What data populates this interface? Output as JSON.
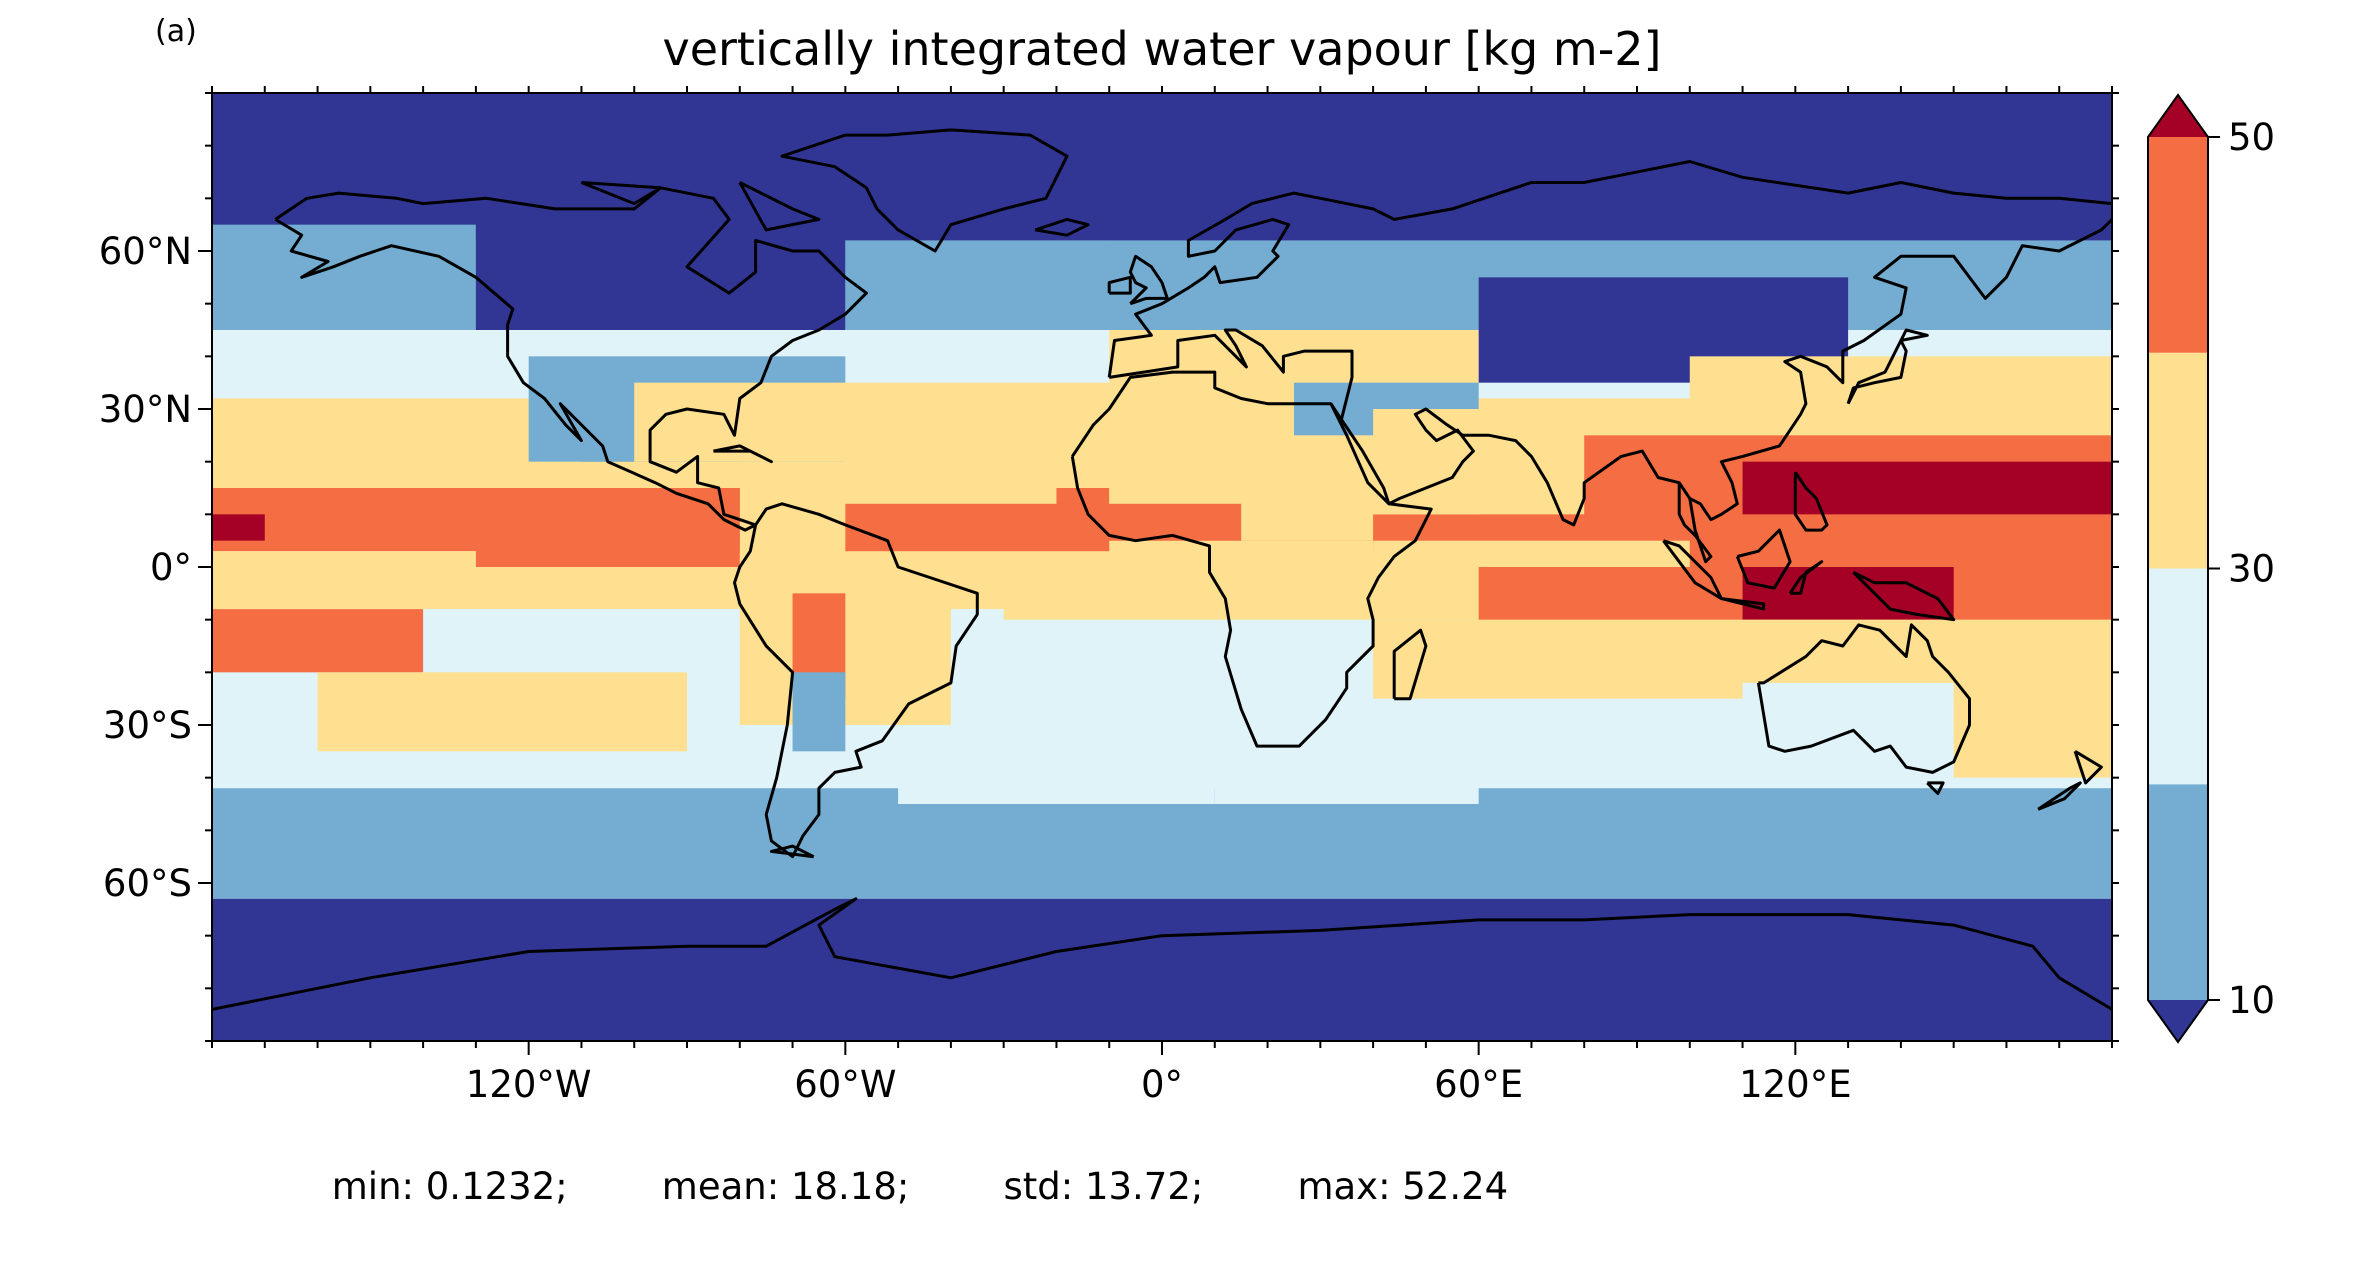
{
  "panel_label": "(a)",
  "title": "vertically integrated water vapour [kg m-2]",
  "stats": {
    "min_label": "min:",
    "min": "0.1232;",
    "mean_label": "mean:",
    "mean": "18.18;",
    "std_label": "std:",
    "std": "13.72;",
    "max_label": "max:",
    "max": "52.24"
  },
  "map": {
    "projection": "equirectangular",
    "lon_range": [
      -180,
      180
    ],
    "lat_range": [
      -90,
      90
    ],
    "lon_ticks": [
      {
        "value": -120,
        "label": "120°W"
      },
      {
        "value": -60,
        "label": "60°W"
      },
      {
        "value": 0,
        "label": "0°"
      },
      {
        "value": 60,
        "label": "60°E"
      },
      {
        "value": 120,
        "label": "120°E"
      }
    ],
    "lat_ticks": [
      {
        "value": 60,
        "label": "60°N"
      },
      {
        "value": 30,
        "label": "30°N"
      },
      {
        "value": 0,
        "label": "0°"
      },
      {
        "value": -30,
        "label": "30°S"
      },
      {
        "value": -60,
        "label": "60°S"
      }
    ]
  },
  "colorbar": {
    "levels": [
      10,
      20,
      30,
      40,
      50
    ],
    "colors": [
      "#313695",
      "#74add1",
      "#e0f3f8",
      "#fee090",
      "#f46d43",
      "#a50026"
    ],
    "extend": "both",
    "tick_labels": [
      {
        "value": 50,
        "label": "50"
      },
      {
        "value": 30,
        "label": "30"
      },
      {
        "value": 10,
        "label": "10"
      }
    ]
  },
  "chart_data": {
    "type": "heatmap",
    "title": "vertically integrated water vapour [kg m-2]",
    "units": "kg m-2",
    "zonal_band_class_edges_lat": [
      {
        "lat_from": 90,
        "lat_to": 62,
        "class": 0
      },
      {
        "lat_from": 62,
        "lat_to": 45,
        "class": 1
      },
      {
        "lat_from": 45,
        "lat_to": 32,
        "class": 2
      },
      {
        "lat_from": 32,
        "lat_to": 15,
        "class": 3
      },
      {
        "lat_from": 15,
        "lat_to": 3,
        "class": 4
      },
      {
        "lat_from": 3,
        "lat_to": -8,
        "class": 3
      },
      {
        "lat_from": -8,
        "lat_to": -28,
        "class": 2
      },
      {
        "lat_from": -28,
        "lat_to": -42,
        "class": 2
      },
      {
        "lat_from": -42,
        "lat_to": -63,
        "class": 1
      },
      {
        "lat_from": -63,
        "lat_to": -90,
        "class": 0
      }
    ],
    "class_levels": [
      "<10",
      "10-20",
      "20-30",
      "30-40",
      "40-50",
      ">50"
    ]
  }
}
